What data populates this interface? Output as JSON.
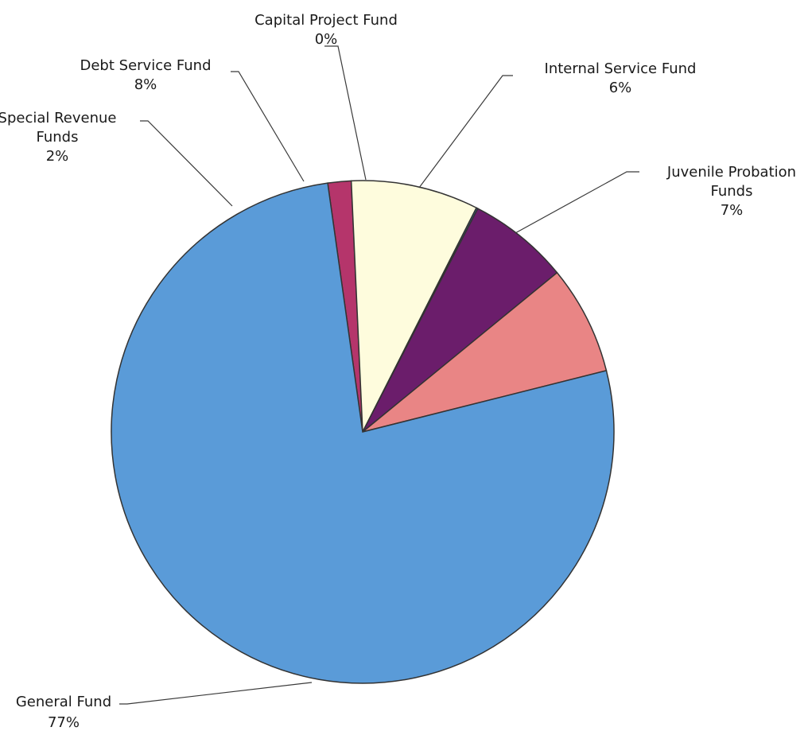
{
  "chart_data": {
    "type": "pie",
    "title": "",
    "slices": [
      {
        "label": "Special Revenue Funds",
        "label_lines": [
          "Special Revenue",
          "Funds"
        ],
        "value_label": "2%",
        "value": 1.5,
        "color": "#b5356b"
      },
      {
        "label": "Debt Service Fund",
        "label_lines": [
          "Debt Service Fund"
        ],
        "value_label": "8%",
        "value": 8.2,
        "color": "#fefcdd"
      },
      {
        "label": "Capital Project Fund",
        "label_lines": [
          "Capital Project Fund"
        ],
        "value_label": "0%",
        "value": 0.1,
        "color": "#3d6fb3"
      },
      {
        "label": "Internal Service Fund",
        "label_lines": [
          "Internal Service Fund"
        ],
        "value_label": "6%",
        "value": 6.5,
        "color": "#6b1d6b"
      },
      {
        "label": "Juvenile Probation Funds",
        "label_lines": [
          "Juvenile Probation",
          "Funds"
        ],
        "value_label": "7%",
        "value": 7.0,
        "color": "#e98585"
      },
      {
        "label": "General Fund",
        "label_lines": [
          "General Fund"
        ],
        "value_label": "77%",
        "value": 76.7,
        "color": "#5a9bd8"
      }
    ],
    "labels_outside": true,
    "leader_lines": true
  }
}
